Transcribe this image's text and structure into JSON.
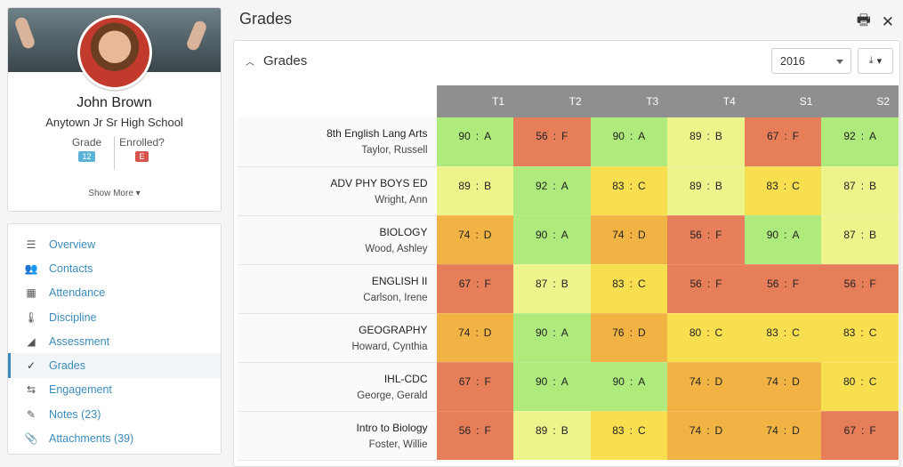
{
  "profile": {
    "name": "John Brown",
    "school": "Anytown Jr Sr High School",
    "grade_label": "Grade",
    "grade_value": "12",
    "enrolled_label": "Enrolled?",
    "enrolled_value": "E",
    "show_more": "Show More ▾"
  },
  "nav": [
    {
      "label": "Overview",
      "icon": "list-icon",
      "glyph": "☰"
    },
    {
      "label": "Contacts",
      "icon": "contacts-icon",
      "glyph": "👥"
    },
    {
      "label": "Attendance",
      "icon": "calendar-icon",
      "glyph": "▦"
    },
    {
      "label": "Discipline",
      "icon": "thermometer-icon",
      "glyph": "🌡"
    },
    {
      "label": "Assessment",
      "icon": "area-chart-icon",
      "glyph": "◢"
    },
    {
      "label": "Grades",
      "icon": "check-icon",
      "glyph": "✓",
      "active": true
    },
    {
      "label": "Engagement",
      "icon": "exchange-icon",
      "glyph": "⇆"
    },
    {
      "label": "Notes (23)",
      "icon": "pencil-icon",
      "glyph": "✎"
    },
    {
      "label": "Attachments (39)",
      "icon": "paperclip-icon",
      "glyph": "📎"
    }
  ],
  "page_title": "Grades",
  "section": {
    "title": "Grades",
    "year": "2016"
  },
  "grade_table": {
    "columns": [
      "T1",
      "T2",
      "T3",
      "T4",
      "S1",
      "S2"
    ],
    "rows": [
      {
        "course": "8th English Lang Arts",
        "teacher": "Taylor, Russell",
        "grades": [
          [
            "90",
            "A"
          ],
          [
            "56",
            "F"
          ],
          [
            "90",
            "A"
          ],
          [
            "89",
            "B"
          ],
          [
            "67",
            "F"
          ],
          [
            "92",
            "A"
          ]
        ]
      },
      {
        "course": "ADV PHY BOYS ED",
        "teacher": "Wright, Ann",
        "grades": [
          [
            "89",
            "B"
          ],
          [
            "92",
            "A"
          ],
          [
            "83",
            "C"
          ],
          [
            "89",
            "B"
          ],
          [
            "83",
            "C"
          ],
          [
            "87",
            "B"
          ]
        ]
      },
      {
        "course": "BIOLOGY",
        "teacher": "Wood, Ashley",
        "grades": [
          [
            "74",
            "D"
          ],
          [
            "90",
            "A"
          ],
          [
            "74",
            "D"
          ],
          [
            "56",
            "F"
          ],
          [
            "90",
            "A"
          ],
          [
            "87",
            "B"
          ]
        ]
      },
      {
        "course": "ENGLISH II",
        "teacher": "Carlson, Irene",
        "grades": [
          [
            "67",
            "F"
          ],
          [
            "87",
            "B"
          ],
          [
            "83",
            "C"
          ],
          [
            "56",
            "F"
          ],
          [
            "56",
            "F"
          ],
          [
            "56",
            "F"
          ]
        ]
      },
      {
        "course": "GEOGRAPHY",
        "teacher": "Howard, Cynthia",
        "grades": [
          [
            "74",
            "D"
          ],
          [
            "90",
            "A"
          ],
          [
            "76",
            "D"
          ],
          [
            "80",
            "C"
          ],
          [
            "83",
            "C"
          ],
          [
            "83",
            "C"
          ]
        ]
      },
      {
        "course": "IHL-CDC",
        "teacher": "George, Gerald",
        "grades": [
          [
            "67",
            "F"
          ],
          [
            "90",
            "A"
          ],
          [
            "90",
            "A"
          ],
          [
            "74",
            "D"
          ],
          [
            "74",
            "D"
          ],
          [
            "80",
            "C"
          ]
        ]
      },
      {
        "course": "Intro to Biology",
        "teacher": "Foster, Willie",
        "grades": [
          [
            "56",
            "F"
          ],
          [
            "89",
            "B"
          ],
          [
            "83",
            "C"
          ],
          [
            "74",
            "D"
          ],
          [
            "74",
            "D"
          ],
          [
            "67",
            "F"
          ]
        ]
      }
    ]
  },
  "grade_colors": {
    "A": "#aeea7c",
    "B": "#eef48c",
    "C": "#f8df4f",
    "D": "#f1b444",
    "F": "#e67e5a"
  }
}
